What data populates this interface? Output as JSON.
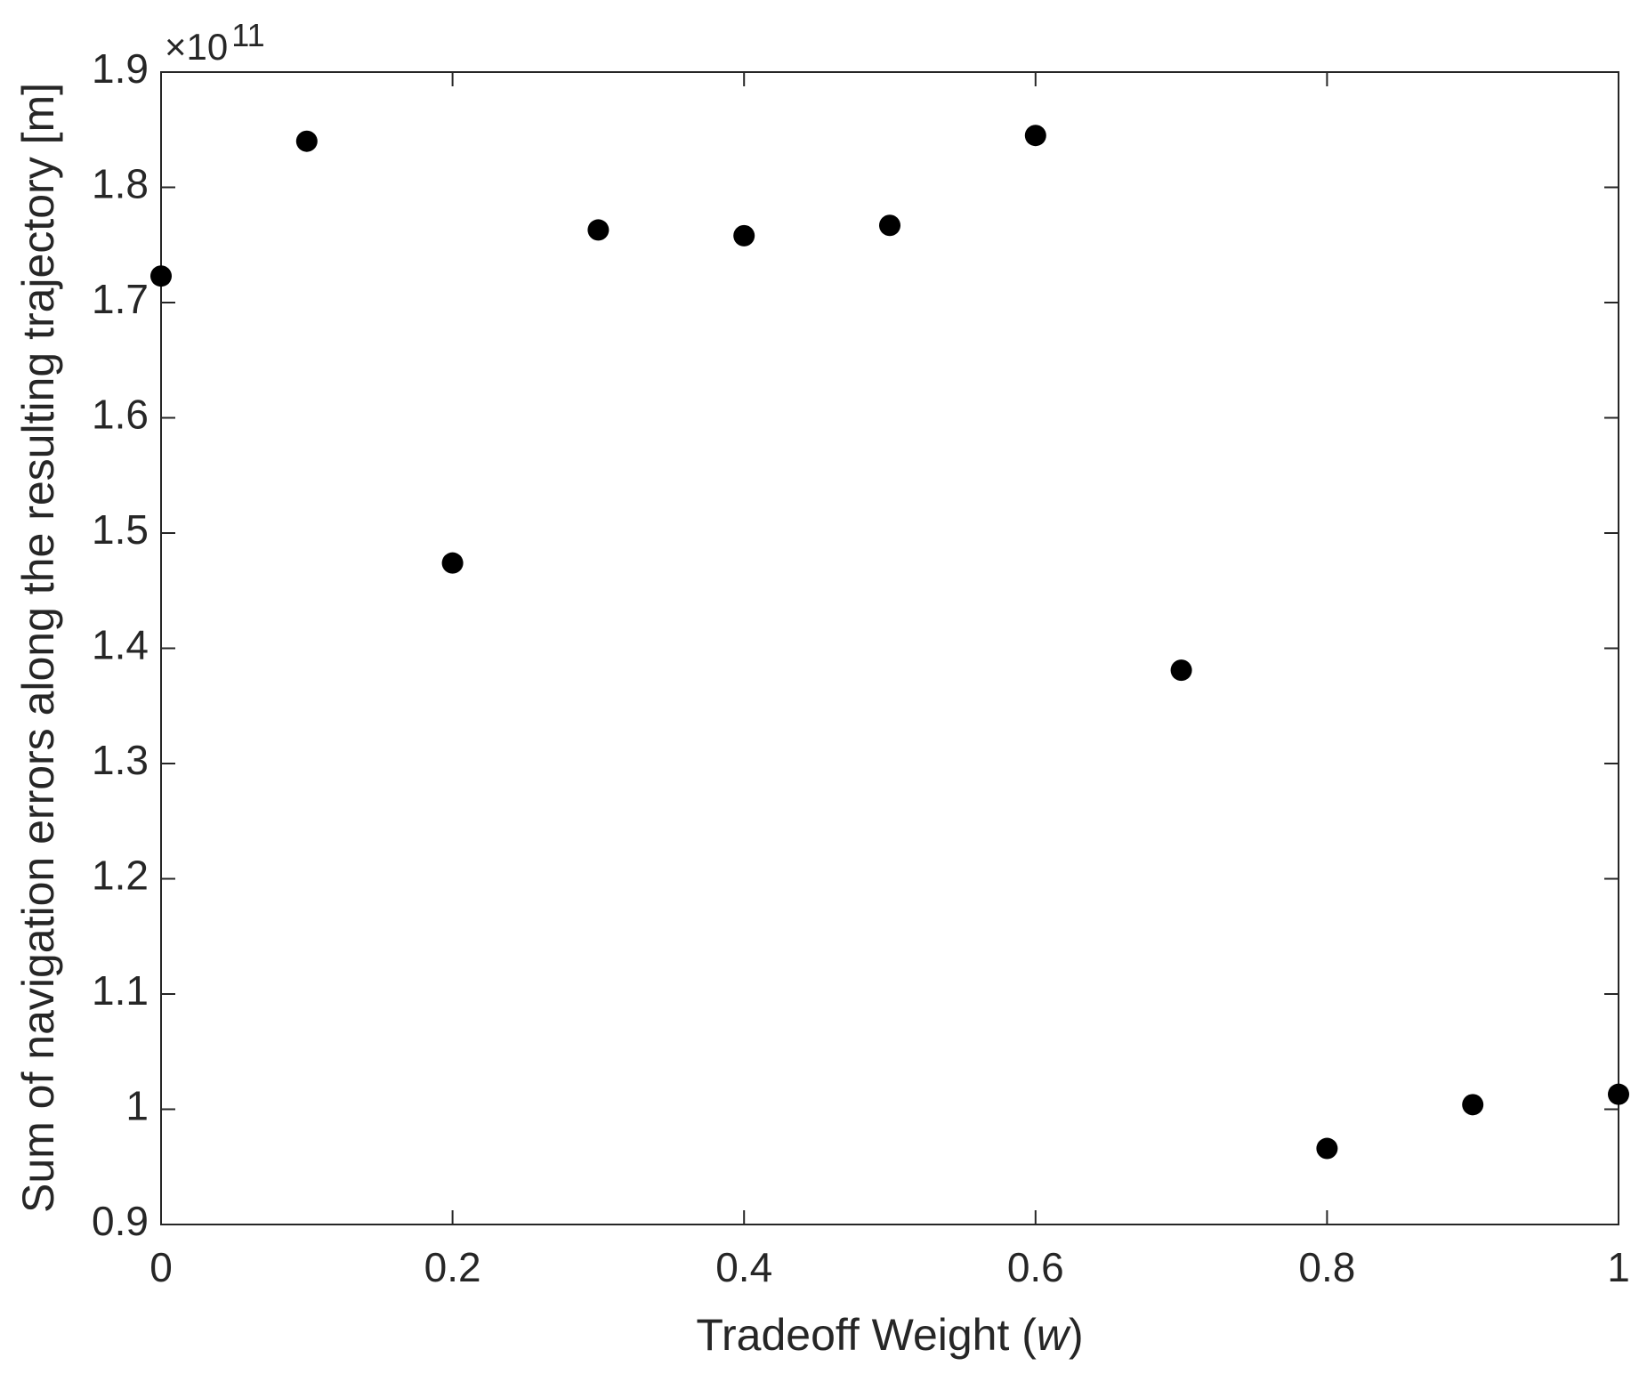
{
  "chart_data": {
    "type": "scatter",
    "x_label": {
      "text": "Tradeoff Weight (",
      "var": "w",
      "close": ")"
    },
    "y_label": "Sum of navigation errors along the resulting trajectory [m]",
    "y_multiplier": {
      "base": "×10",
      "exponent": "11"
    },
    "x": [
      0,
      0.1,
      0.2,
      0.3,
      0.4,
      0.5,
      0.6,
      0.7,
      0.8,
      0.9,
      1
    ],
    "series": [
      {
        "color": "#000000",
        "values": [
          1.723,
          1.84,
          1.474,
          1.763,
          1.758,
          1.767,
          1.845,
          1.381,
          0.966,
          1.004,
          1.013
        ]
      }
    ],
    "xlim": [
      0,
      1
    ],
    "xticks": [
      0,
      0.2,
      0.4,
      0.6,
      0.8,
      1
    ],
    "ylim": [
      0.9,
      1.9
    ],
    "yticks": [
      0.9,
      1,
      1.1,
      1.2,
      1.3,
      1.4,
      1.5,
      1.6,
      1.7,
      1.8,
      1.9
    ],
    "grid": false
  }
}
